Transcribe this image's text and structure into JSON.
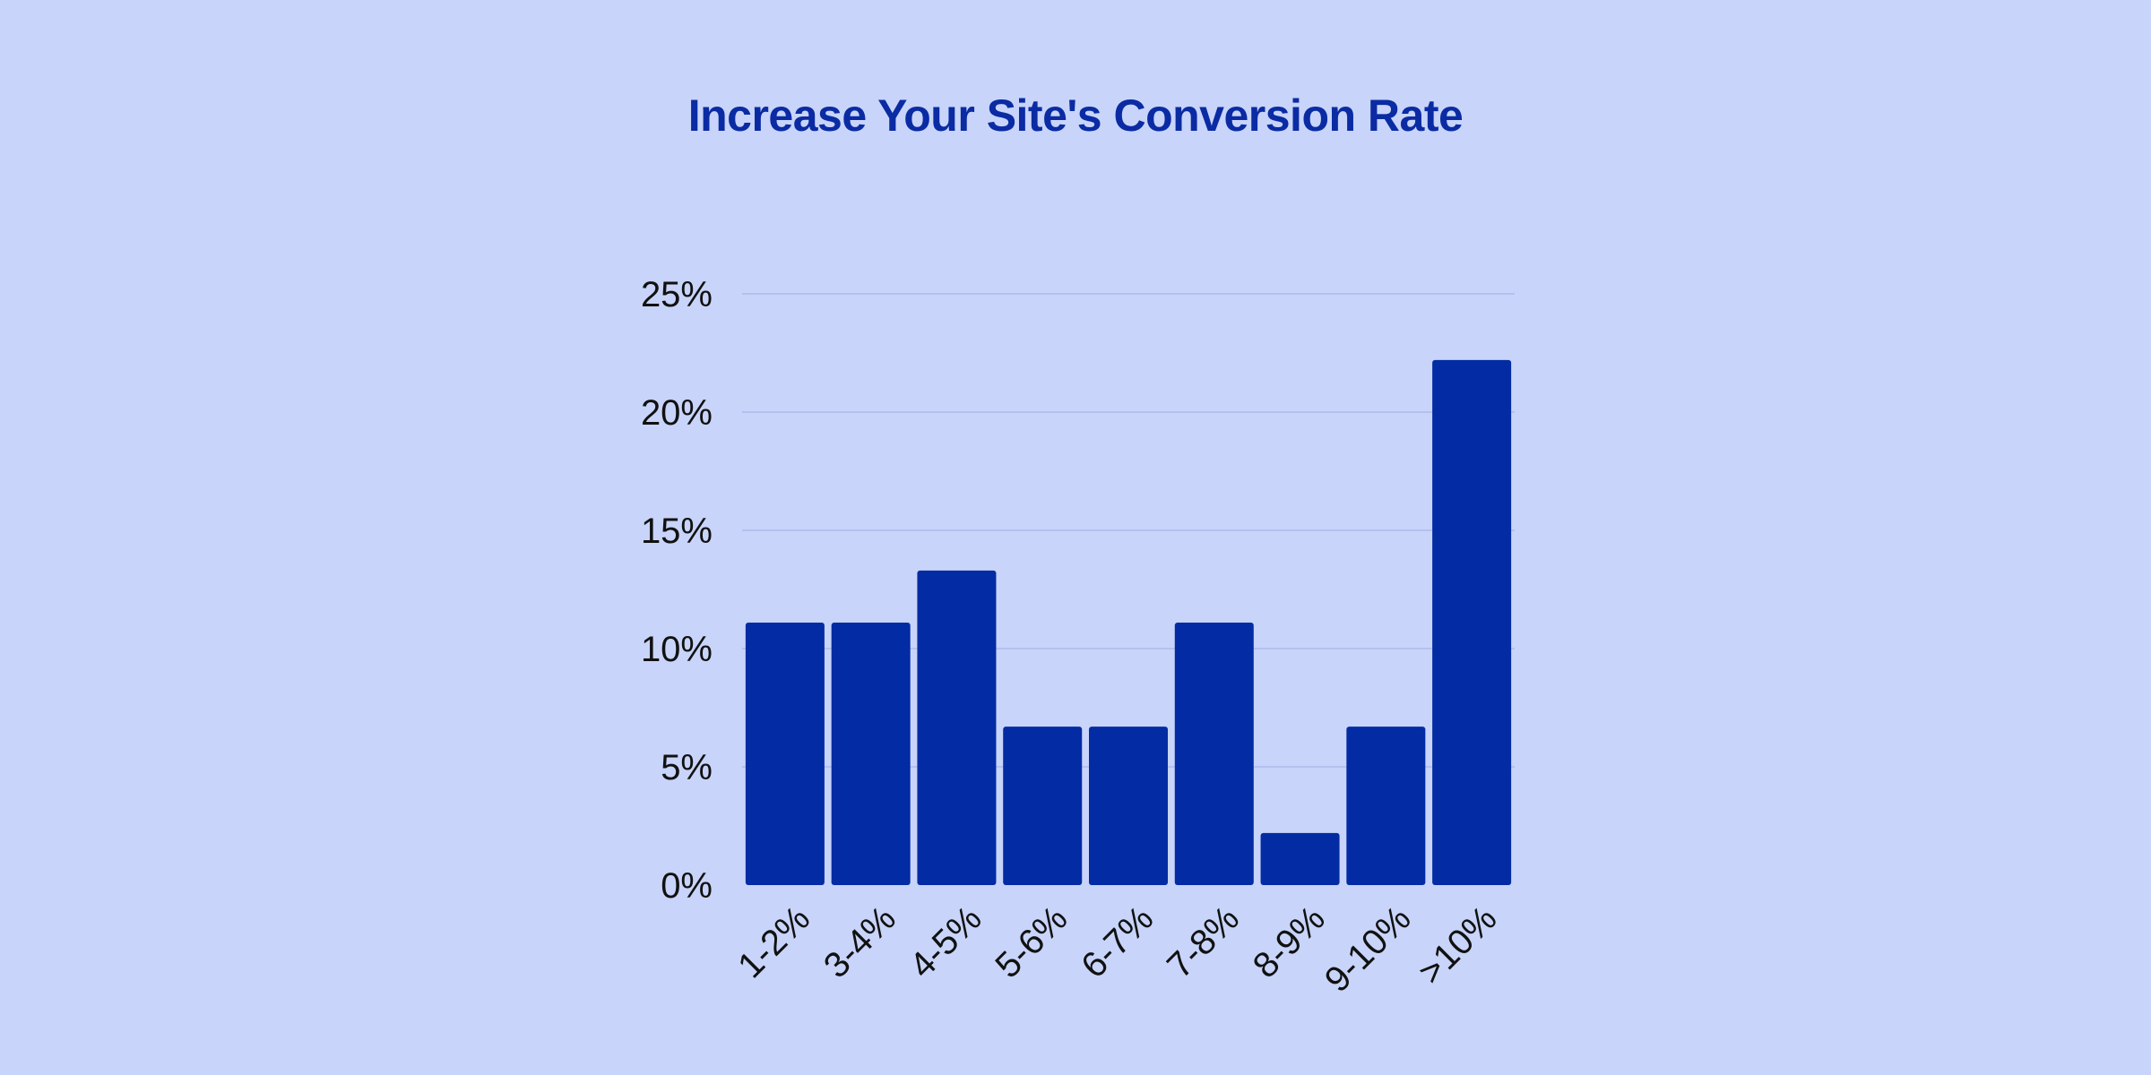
{
  "colors": {
    "background": "#c8d4f9",
    "title": "#0a2ba3",
    "bar": "#032ba3",
    "grid": "#b4c1ef"
  },
  "chart_data": {
    "type": "bar",
    "title": "Increase Your Site's Conversion Rate",
    "xlabel": "",
    "ylabel": "",
    "categories": [
      "1-2%",
      "3-4%",
      "4-5%",
      "5-6%",
      "6-7%",
      "7-8%",
      "8-9%",
      "9-10%",
      ">10%"
    ],
    "values": [
      11.1,
      11.1,
      13.3,
      6.7,
      6.7,
      11.1,
      2.2,
      6.7,
      22.2
    ],
    "ylim": [
      0,
      25
    ],
    "yticks": [
      0,
      5,
      10,
      15,
      20,
      25
    ],
    "ytick_labels": [
      "0%",
      "5%",
      "10%",
      "15%",
      "20%",
      "25%"
    ],
    "grid": true,
    "legend": "none"
  }
}
